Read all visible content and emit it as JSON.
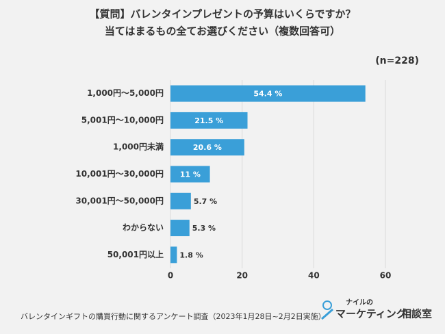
{
  "chart_data": {
    "type": "bar",
    "orientation": "horizontal",
    "title": [
      "【質問】バレンタインプレゼントの予算はいくらですか？",
      "当てはまるもの全てお選びください（複数回答可）"
    ],
    "subtitle": "(n=228)",
    "categories": [
      "1,000円～5,000円",
      "5,001円～10,000円",
      "1,000円未満",
      "10,001円～30,000円",
      "30,001円～50,000円",
      "わからない",
      "50,001円以上"
    ],
    "values": [
      54.4,
      21.5,
      20.6,
      11,
      5.7,
      5.3,
      1.8
    ],
    "value_labels": [
      "54.4 %",
      "21.5 %",
      "20.6 %",
      "11 %",
      "5.7 %",
      "5.3 %",
      "1.8 %"
    ],
    "color": "#3a9fd8",
    "xlim": [
      0,
      60
    ],
    "xticks": [
      0,
      20,
      40,
      60
    ],
    "grid": true,
    "source": "バレンタインギフトの購買行動に関するアンケート調査（2023年1月28日~2月2日実施）",
    "logo": {
      "top": "ナイルの",
      "main": "マーケティング",
      "suffix": "相談室"
    }
  }
}
